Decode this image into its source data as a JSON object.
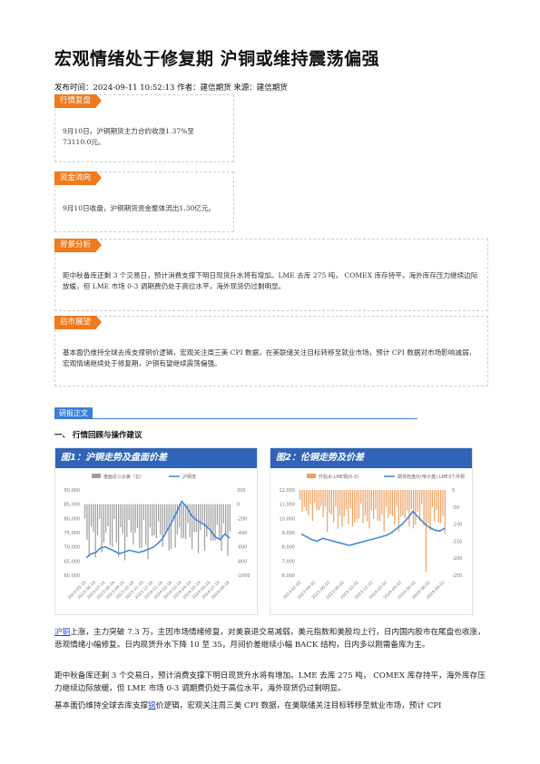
{
  "title": "宏观情绪处于修复期 沪铜或维持震荡偏强",
  "meta": "发布时间：2024-09-11 10:52:13 作者：建信期货 来源：建信期货",
  "boxes": {
    "market": {
      "tag": "行情复盘",
      "text": "9月10日，沪铜期货主力合约收涨1.37%至73110.0元。"
    },
    "flow": {
      "tag": "资金流向",
      "text": "9月10日收盘，沪铜期货资金整体流出1.30亿元。"
    },
    "background": {
      "tag": "背景分析",
      "text": "距中秋备库还剩 3 个交易日，预计消费支撑下明日现货升水将有增加。LME 去库 275 吨， COMEX 库存持平，海外库存压力继续边际放缓，但 LME 市场 0-3 调期费仍处于高位水平，海外现货仍过剩明显。"
    },
    "outlook": {
      "tag": "后市展望",
      "text": "基本面仍维持全球去库支撑铜价逻辑，宏观关注周三美 CPI 数据，在美联储关注目标转移至就业市场，预计 CPI 数据对市场影响减弱，宏观情绪继续处于修复期，沪铜有望继续震荡偏强。"
    }
  },
  "research_tag": "研报正文",
  "section_title": "一、 行情回顾与操作建议",
  "chart_data": [
    {
      "type": "line",
      "title": "图1：沪铜走势及盘面价差",
      "legend": [
        "盘面近三价差（右）",
        "沪铜连"
      ],
      "y_left_ticks": [
        "90,000",
        "85,000",
        "80,000",
        "75,000",
        "70,000",
        "65,000",
        "60,000"
      ],
      "y_right_ticks": [
        "200",
        "0",
        "-200",
        "-400",
        "-600",
        "-800",
        "-1000"
      ],
      "x_ticks": [
        "2023-05-16",
        "2023-06-16",
        "2023-07-16",
        "2023-08-16",
        "2023-09-16",
        "2023-10-16",
        "2023-11-16",
        "2023-12-16",
        "2024-01-16",
        "2024-02-16",
        "2024-03-16",
        "2024-04-16",
        "2024-05-16",
        "2024-06-16",
        "2024-07-16",
        "2024-08-16"
      ],
      "price": [
        66200,
        67500,
        68000,
        69600,
        70000,
        69200,
        68400,
        67600,
        68200,
        68800,
        68400,
        68000,
        68500,
        69200,
        69800,
        71200,
        73000,
        76000,
        79000,
        82500,
        86000,
        84000,
        81000,
        79500,
        78500,
        77500,
        75800,
        73500,
        72500,
        74500,
        73100
      ],
      "spread_ylim": [
        -1000,
        200
      ],
      "price_ylim": [
        60000,
        90000
      ]
    },
    {
      "type": "line",
      "title": "图2：伦铜走势及价差",
      "legend": [
        "升贴水:LME铜(0-3)",
        "期货收盘价(电子盘):LME3个月铜"
      ],
      "y_left_ticks": [
        "12,000",
        "11,000",
        "10,000",
        "9,000",
        "8,000",
        "7,000",
        "6,000"
      ],
      "y_right_ticks": [
        "0",
        "-50",
        "-100",
        "-150",
        "-200",
        "-250"
      ],
      "x_ticks": [
        "2023-02-02",
        "2023-04-02",
        "2023-06-02",
        "2023-08-02",
        "2023-10-02",
        "2023-12-02",
        "2024-02-02",
        "2024-04-02",
        "2024-06-02",
        "2024-08-02",
        "2024-09-02"
      ],
      "price": [
        8900,
        8700,
        8500,
        8400,
        8600,
        8500,
        8400,
        8300,
        8200,
        8100,
        8200,
        8300,
        8400,
        8500,
        8600,
        8700,
        8800,
        9000,
        9300,
        9600,
        10000,
        10500,
        10100,
        9700,
        9400,
        9200,
        9100,
        9300
      ],
      "spread_ylim": [
        -250,
        0
      ],
      "price_ylim": [
        6000,
        12000
      ]
    }
  ],
  "paragraphs": {
    "p1_link": "沪铜",
    "p1_rest": "上涨，主力突破 7.3 万，主因市场情绪修复，对美衰退交易减弱，美元指数和美股均上行，日内国内股市在尾盘也收涨，悲观情绪小幅修复。日内现货升水下降 10 至 35，月间价差继续小幅 BACK 结构，日内多以刚需备库为主。",
    "p2": "距中秋备库还剩 3 个交易日，预计消费支撑下明日现货升水将有增加。LME 去库 275 吨， COMEX 库存持平，海外库存压力继续边际放缓，但 LME 市场 0-3 调期费仍处于高位水平，海外现货仍过剩明显。",
    "p3_pre": "基本面仍维持全球去库支撑",
    "p3_link": "铜",
    "p3_post": "价逻辑，宏观关注周三美 CPI 数据，在美联储关注目标转移至就业市场，预计 CPI"
  },
  "colors": {
    "accent": "#f07a1e",
    "blue": "#3c7ed6",
    "header": "#2f64b8",
    "bar_gray": "#9e9e9e",
    "bar_orange": "#f0a060",
    "line_blue": "#3a84d8"
  }
}
